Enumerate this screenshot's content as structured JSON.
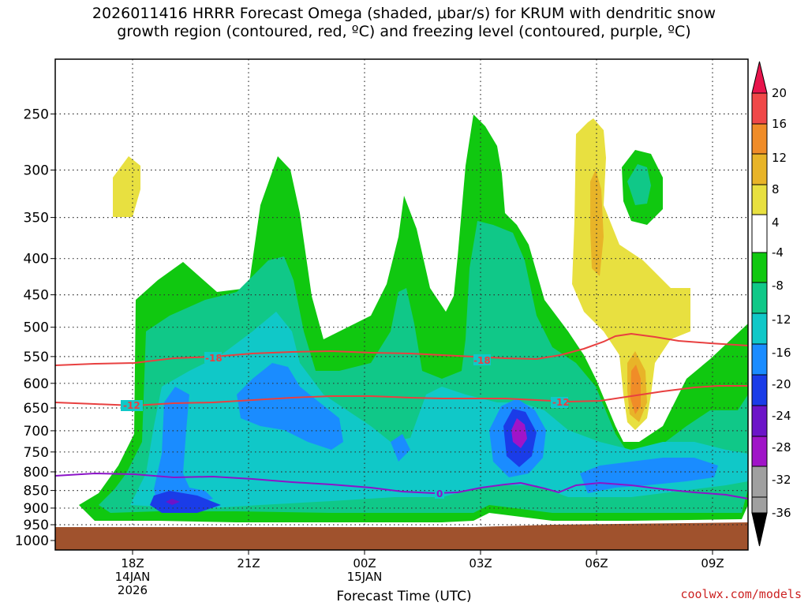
{
  "chart_data": {
    "type": "heatmap",
    "title_line1": "2026011416 HRRR Forecast Omega (shaded, μbar/s) for KRUM with dendritic snow",
    "title_line2": "growth region (contoured, red, ºC) and freezing level (contoured, purple, ºC)",
    "xlabel": "Forecast Time (UTC)",
    "y_ticks": [
      "250",
      "300",
      "350",
      "400",
      "450",
      "500",
      "550",
      "600",
      "650",
      "700",
      "750",
      "800",
      "850",
      "900",
      "950",
      "1000"
    ],
    "x_ticks": [
      {
        "time": "18Z",
        "date": "14JAN",
        "year": "2026"
      },
      {
        "time": "21Z",
        "date": "",
        "year": ""
      },
      {
        "time": "00Z",
        "date": "15JAN",
        "year": ""
      },
      {
        "time": "03Z",
        "date": "",
        "year": ""
      },
      {
        "time": "06Z",
        "date": "",
        "year": ""
      },
      {
        "time": "09Z",
        "date": "",
        "year": ""
      }
    ],
    "colorbar_labels": [
      "20",
      "16",
      "12",
      "8",
      "4",
      "-4",
      "-8",
      "-12",
      "-16",
      "-20",
      "-24",
      "-28",
      "-32",
      "-36"
    ],
    "colorbar_colors": [
      "#e8144c",
      "#f04848",
      "#f08c28",
      "#e8b428",
      "#e8e040",
      "#ffffff",
      "#10c810",
      "#10c888",
      "#10c8c8",
      "#1a8cff",
      "#1a3ce8",
      "#6c14c8",
      "#a014c8",
      "#a0a0a0"
    ],
    "contour_labels": {
      "red_upper": "-18",
      "red_lower": "-12",
      "purple": "0"
    },
    "contour_colors": {
      "dgz": "#e84040",
      "freezing": "#8c14c8",
      "ground": "#a0522d"
    }
  },
  "credit": "coolwx.com/models"
}
